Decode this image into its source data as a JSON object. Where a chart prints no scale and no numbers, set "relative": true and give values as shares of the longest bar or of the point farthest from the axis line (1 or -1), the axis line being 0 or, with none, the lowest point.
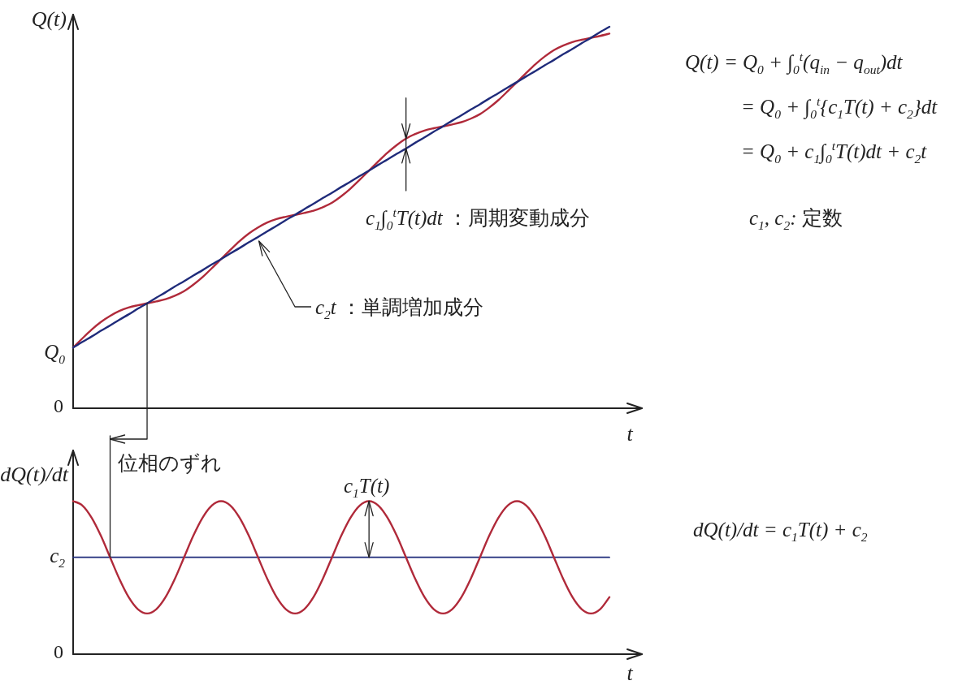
{
  "chart_data": [
    {
      "type": "line",
      "xlabel": "t",
      "ylabel": "Q(t)",
      "relative": true,
      "categories": [
        null,
        null,
        null,
        null,
        null,
        null,
        null,
        null,
        null,
        null,
        null,
        null,
        null,
        null,
        null,
        null,
        null,
        null,
        null,
        null,
        null,
        null,
        null,
        null,
        null,
        null,
        null,
        null,
        null,
        null,
        null,
        null,
        null,
        null,
        null,
        null,
        null,
        null,
        null,
        null,
        null,
        null,
        null,
        null,
        null,
        null,
        null,
        null,
        null,
        null,
        null,
        null,
        null,
        null,
        null,
        null,
        null,
        null,
        null
      ],
      "series": [
        {
          "color": "#b02a3a",
          "values": [
            0.159,
            0.183,
            0.206,
            0.226,
            0.242,
            0.255,
            0.264,
            0.27,
            0.275,
            0.28,
            0.286,
            0.295,
            0.307,
            0.324,
            0.344,
            0.367,
            0.391,
            0.415,
            0.438,
            0.458,
            0.474,
            0.487,
            0.496,
            0.502,
            0.507,
            0.512,
            0.518,
            0.527,
            0.539,
            0.556,
            0.576,
            0.599,
            0.623,
            0.647,
            0.67,
            0.69,
            0.707,
            0.719,
            0.728,
            0.734,
            0.739,
            0.744,
            0.75,
            0.759,
            0.771,
            0.788,
            0.808,
            0.831,
            0.855,
            0.879,
            0.902,
            0.922,
            0.939,
            0.951,
            0.96,
            0.966,
            0.971,
            0.976,
            0.982
          ]
        },
        {
          "color": "#1f2b7a",
          "values": [
            0.159,
            0.174,
            0.188,
            0.203,
            0.217,
            0.232,
            0.246,
            0.261,
            0.275,
            0.29,
            0.304,
            0.319,
            0.333,
            0.348,
            0.362,
            0.377,
            0.391,
            0.406,
            0.42,
            0.435,
            0.449,
            0.464,
            0.478,
            0.493,
            0.507,
            0.522,
            0.536,
            0.551,
            0.565,
            0.58,
            0.594,
            0.609,
            0.623,
            0.638,
            0.652,
            0.667,
            0.681,
            0.696,
            0.71,
            0.725,
            0.739,
            0.754,
            0.768,
            0.783,
            0.797,
            0.812,
            0.826,
            0.841,
            0.855,
            0.87,
            0.884,
            0.899,
            0.913,
            0.928,
            0.942,
            0.957,
            0.971,
            0.986,
            1
          ]
        }
      ],
      "annotations": [
        "0",
        "Q$_{0}$",
        "c$_{1}$∫$_{0}$$^{t}$T(t)dt ：周期変動成分",
        "c$_{2}$t ：単調増加成分",
        "Q(t) = Q$_{0}$ + ∫$_{0}$$^{t}$(q$_{in}$ − q$_{out}$)dt",
        "= Q$_{0}$ + ∫$_{0}$$^{t}${c$_{1}$T(t) + c$_{2}$}dt",
        "= Q$_{0}$ + c$_{1}$∫$_{0}$$^{t}$T(t)dt + c$_{2}$t",
        "c$_{1}$, c$_{2}$: 定数"
      ]
    },
    {
      "type": "line",
      "xlabel": "t",
      "ylabel": "dQ(t)/dt",
      "relative": true,
      "categories": [
        null,
        null,
        null,
        null,
        null,
        null,
        null,
        null,
        null,
        null,
        null,
        null,
        null,
        null,
        null,
        null,
        null,
        null,
        null,
        null,
        null,
        null,
        null,
        null,
        null,
        null,
        null,
        null,
        null,
        null,
        null,
        null,
        null,
        null,
        null,
        null,
        null,
        null,
        null,
        null,
        null,
        null,
        null,
        null,
        null,
        null,
        null,
        null,
        null,
        null,
        null,
        null,
        null,
        null,
        null,
        null,
        null,
        null,
        null
      ],
      "series": [
        {
          "color": "#b02a3a",
          "values": [
            1,
            0.972,
            0.892,
            0.774,
            0.633,
            0.492,
            0.373,
            0.294,
            0.266,
            0.294,
            0.373,
            0.492,
            0.633,
            0.774,
            0.892,
            0.972,
            1,
            0.972,
            0.892,
            0.774,
            0.633,
            0.492,
            0.373,
            0.294,
            0.266,
            0.294,
            0.373,
            0.492,
            0.633,
            0.774,
            0.892,
            0.972,
            1,
            0.972,
            0.892,
            0.774,
            0.633,
            0.492,
            0.373,
            0.294,
            0.266,
            0.294,
            0.373,
            0.492,
            0.633,
            0.774,
            0.892,
            0.972,
            1,
            0.972,
            0.892,
            0.774,
            0.633,
            0.492,
            0.373,
            0.294,
            0.266,
            0.294,
            0.373
          ]
        }
      ],
      "ref_lines": [
        {
          "axis": "y",
          "value": 0.633,
          "label": "c$_{2}$",
          "color": "#1f2b7a"
        }
      ],
      "annotations": [
        "0",
        "位相のずれ",
        "c$_{1}$T(t)",
        "dQ(t)/dt = c$_{1}$T(t) + c$_{2}$"
      ]
    }
  ]
}
